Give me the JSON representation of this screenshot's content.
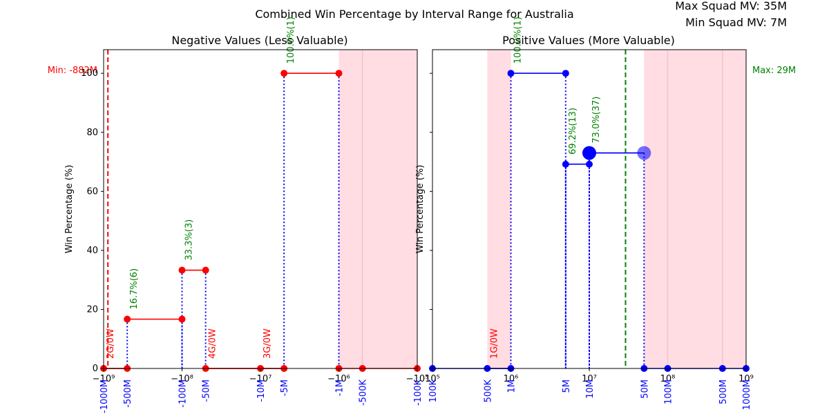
{
  "figure": {
    "suptitle": "Combined Win Percentage by Interval Range for Australia",
    "max_label": "Max Squad MV: 35M",
    "min_label": "Min Squad MV: 7M"
  },
  "colors": {
    "red": "#ff0000",
    "blue": "#0000ff",
    "green": "#008000",
    "shade": "#ffdde3"
  },
  "chart_data": [
    {
      "type": "line",
      "title": "Negative Values (Less Valuable)",
      "ylabel": "Win Percentage (%)",
      "xscale": "symlog",
      "xlim": [
        -1000000000,
        -100000
      ],
      "ylim": [
        0,
        108
      ],
      "y_ticks": [
        0,
        20,
        40,
        60,
        80,
        100
      ],
      "line_color": "red",
      "major_ticks": [
        {
          "value": -1000000000,
          "label": "−10⁹"
        },
        {
          "value": -100000000,
          "label": "−10⁸"
        },
        {
          "value": -10000000,
          "label": "−10⁷"
        },
        {
          "value": -1000000,
          "label": "−10⁶"
        },
        {
          "value": -100000,
          "label": "−10⁵"
        }
      ],
      "boundary_labels": [
        {
          "value": -1000000000,
          "label": "-1000M"
        },
        {
          "value": -500000000,
          "label": "-500M"
        },
        {
          "value": -100000000,
          "label": "-100M"
        },
        {
          "value": -50000000,
          "label": "-50M"
        },
        {
          "value": -10000000,
          "label": "-10M"
        },
        {
          "value": -5000000,
          "label": "-5M"
        },
        {
          "value": -1000000,
          "label": "-1M"
        },
        {
          "value": -500000,
          "label": "-500K"
        },
        {
          "value": -100000,
          "label": "-100K"
        }
      ],
      "shaded_ranges": [
        [
          -1000000,
          -100000
        ]
      ],
      "ref_line": {
        "value": -882000000,
        "label": "Min: -882M",
        "color": "red"
      },
      "segments": [
        {
          "x": [
            -500000000,
            -100000000
          ],
          "y": 16.7,
          "label": "16.7%(6)",
          "label_color": "green"
        },
        {
          "x": [
            -100000000,
            -50000000
          ],
          "y": 33.3,
          "label": "33.3%(3)",
          "label_color": "green"
        },
        {
          "x": [
            -50000000,
            -10000000
          ],
          "y": 0,
          "label": "4G/0W",
          "label_color": "red"
        },
        {
          "x": [
            -10000000,
            -5000000
          ],
          "y": 0,
          "label": "3G/0W",
          "label_color": "red"
        },
        {
          "x": [
            -5000000,
            -1000000
          ],
          "y": 100,
          "label": "100.0%(1)",
          "label_color": "green"
        },
        {
          "x": [
            -1000000000,
            -500000000
          ],
          "y": 0,
          "label": "2G/0W",
          "label_color": "red"
        }
      ],
      "points": [
        {
          "x": -1000000000,
          "y": 0
        },
        {
          "x": -500000000,
          "y": 0
        },
        {
          "x": -500000000,
          "y": 16.7
        },
        {
          "x": -100000000,
          "y": 16.7
        },
        {
          "x": -100000000,
          "y": 33.3
        },
        {
          "x": -50000000,
          "y": 33.3
        },
        {
          "x": -50000000,
          "y": 0
        },
        {
          "x": -10000000,
          "y": 0
        },
        {
          "x": -5000000,
          "y": 0
        },
        {
          "x": -5000000,
          "y": 100
        },
        {
          "x": -1000000,
          "y": 100
        },
        {
          "x": -1000000,
          "y": 0
        },
        {
          "x": -500000,
          "y": 0
        },
        {
          "x": -100000,
          "y": 0
        }
      ]
    },
    {
      "type": "line",
      "title": "Positive Values (More Valuable)",
      "ylabel": "Win Percentage (%)",
      "xscale": "log",
      "xlim": [
        100000,
        1000000000
      ],
      "ylim": [
        0,
        108
      ],
      "line_color": "blue",
      "major_ticks": [
        {
          "value": 100000,
          "label": "10⁵"
        },
        {
          "value": 1000000,
          "label": "10⁶"
        },
        {
          "value": 10000000,
          "label": "10⁷"
        },
        {
          "value": 100000000,
          "label": "10⁸"
        },
        {
          "value": 1000000000,
          "label": "10⁹"
        }
      ],
      "boundary_labels": [
        {
          "value": 100000,
          "label": "100K"
        },
        {
          "value": 500000,
          "label": "500K"
        },
        {
          "value": 1000000,
          "label": "1M"
        },
        {
          "value": 5000000,
          "label": "5M"
        },
        {
          "value": 10000000,
          "label": "10M"
        },
        {
          "value": 50000000,
          "label": "50M"
        },
        {
          "value": 100000000,
          "label": "100M"
        },
        {
          "value": 500000000,
          "label": "500M"
        },
        {
          "value": 1000000000,
          "label": "1000M"
        }
      ],
      "shaded_ranges": [
        [
          500000,
          1000000
        ],
        [
          50000000,
          1000000000
        ]
      ],
      "ref_line": {
        "value": 29000000,
        "label": "Max: 29M",
        "color": "green"
      },
      "segments": [
        {
          "x": [
            1000000,
            5000000
          ],
          "y": 100,
          "label": "100.0%(1)",
          "label_color": "green"
        },
        {
          "x": [
            5000000,
            10000000
          ],
          "y": 69.2,
          "label": "69.2%(13)",
          "label_color": "green"
        },
        {
          "x": [
            10000000,
            50000000
          ],
          "y": 73.0,
          "label": "73.0%(37)",
          "label_color": "green"
        },
        {
          "x": [
            500000,
            1000000
          ],
          "y": 0,
          "label": "1G/0W",
          "label_color": "red"
        }
      ],
      "points": [
        {
          "x": 100000,
          "y": 0
        },
        {
          "x": 500000,
          "y": 0
        },
        {
          "x": 1000000,
          "y": 0
        },
        {
          "x": 1000000,
          "y": 100
        },
        {
          "x": 5000000,
          "y": 100
        },
        {
          "x": 5000000,
          "y": 69.2
        },
        {
          "x": 10000000,
          "y": 69.2
        },
        {
          "x": 50000000,
          "y": 0
        },
        {
          "x": 100000000,
          "y": 0
        },
        {
          "x": 500000000,
          "y": 0
        },
        {
          "x": 1000000000,
          "y": 0
        }
      ],
      "big_points": [
        {
          "x": 10000000,
          "y": 73.0
        },
        {
          "x": 50000000,
          "y": 73.0
        }
      ]
    }
  ]
}
